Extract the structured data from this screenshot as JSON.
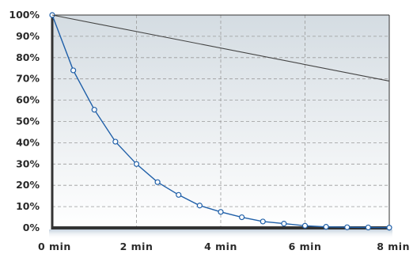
{
  "chart_data": {
    "type": "line",
    "x_ticks": [
      "0 min",
      "2 min",
      "4 min",
      "6 min",
      "8 min"
    ],
    "x_tick_values": [
      0,
      2,
      4,
      6,
      8
    ],
    "y_ticks": [
      "0%",
      "10%",
      "20%",
      "30%",
      "40%",
      "50%",
      "60%",
      "70%",
      "80%",
      "90%",
      "100%"
    ],
    "y_tick_values": [
      0,
      10,
      20,
      30,
      40,
      50,
      60,
      70,
      80,
      90,
      100
    ],
    "xlim": [
      0,
      8
    ],
    "ylim": [
      0,
      100
    ],
    "grid": true,
    "series": [
      {
        "color": "#1f5fa8",
        "markers": true,
        "x": [
          0,
          0.5,
          1,
          1.5,
          2,
          2.5,
          3,
          3.5,
          4,
          4.5,
          5,
          5.5,
          6,
          6.5,
          7,
          7.5,
          8
        ],
        "y": [
          100,
          74,
          55.5,
          40.5,
          30,
          21.5,
          15.5,
          10.5,
          7.5,
          5,
          3,
          2,
          1,
          0.5,
          0.3,
          0.2,
          0.1
        ]
      },
      {
        "color": "#444444",
        "markers": false,
        "x": [
          0,
          8
        ],
        "y": [
          100,
          69
        ]
      }
    ],
    "colors": {
      "plot_bg_top": "#d4dce2",
      "plot_bg_bottom": "#ffffff",
      "frame": "#333333",
      "grid": "#9a9a9a",
      "marker_fill": "#ffffff"
    }
  }
}
